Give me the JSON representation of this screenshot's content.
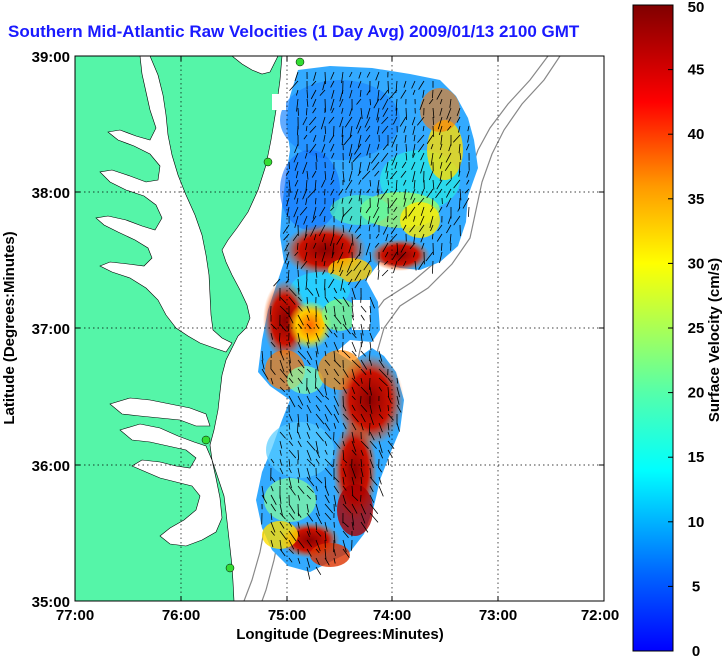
{
  "title": "Southern Mid-Atlantic Raw Velocities (1 Day Avg) 2009/01/13 2100 GMT",
  "map": {
    "xlabel": "Longitude (Degrees:Minutes)",
    "ylabel": "Latitude (Degrees:Minutes)",
    "x_ticks": [
      "77:00",
      "76:00",
      "75:00",
      "74:00",
      "73:00",
      "72:00"
    ],
    "y_ticks": [
      "39:00",
      "38:00",
      "37:00",
      "36:00",
      "35:00"
    ],
    "lon_range": [
      -77,
      -72
    ],
    "lat_range": [
      35,
      39
    ],
    "grid": true,
    "land_color": "#55f5a8",
    "water_color": "#ffffff"
  },
  "colorbar": {
    "label": "Surface Velocity (cm/s)",
    "ticks": [
      "50",
      "45",
      "40",
      "35",
      "30",
      "25",
      "20",
      "15",
      "10",
      "5",
      "0"
    ],
    "range": [
      0,
      50
    ],
    "colormap": "jet"
  }
}
